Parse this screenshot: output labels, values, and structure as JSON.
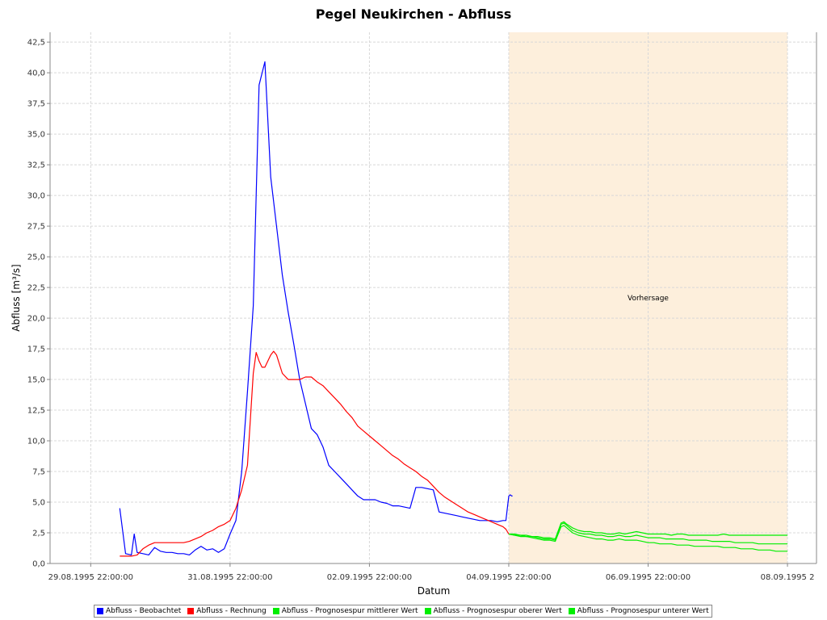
{
  "chart_data": {
    "type": "line",
    "title": "Pegel Neukirchen - Abfluss",
    "xlabel": "Datum",
    "ylabel": "Abfluss [m³/s]",
    "x_ticks": [
      "29.08.1995 22:00:00",
      "31.08.1995 22:00:00",
      "02.09.1995 22:00:00",
      "04.09.1995 22:00:00",
      "06.09.1995 22:00:00",
      "08.09.1995 2"
    ],
    "x_range_hours": [
      -14,
      250
    ],
    "y_ticks": [
      "0,0",
      "2,5",
      "5,0",
      "7,5",
      "10,0",
      "12,5",
      "15,0",
      "17,5",
      "20,0",
      "22,5",
      "25,0",
      "27,5",
      "30,0",
      "32,5",
      "35,0",
      "37,5",
      "40,0",
      "42,5"
    ],
    "ylim": [
      0,
      43.3
    ],
    "grid": true,
    "legend_position": "bottom",
    "forecast_region": {
      "label": "Vorhersage",
      "start_hour": 144,
      "end_hour": 240,
      "color": "#fdefdc"
    },
    "series": [
      {
        "name": "Abfluss - Beobachtet",
        "color": "#0000ff",
        "x": [
          10,
          12,
          14,
          15,
          16,
          18,
          20,
          22,
          24,
          26,
          28,
          30,
          32,
          34,
          36,
          38,
          40,
          42,
          44,
          46,
          48,
          50,
          52,
          54,
          56,
          58,
          60,
          62,
          64,
          66,
          68,
          70,
          72,
          74,
          76,
          78,
          80,
          82,
          84,
          86,
          88,
          90,
          92,
          94,
          96,
          98,
          100,
          102,
          104,
          106,
          108,
          110,
          112,
          114,
          116,
          118,
          120,
          122,
          124,
          126,
          128,
          130,
          132,
          134,
          136,
          138,
          140,
          142,
          143,
          144,
          144.5,
          145,
          145.3
        ],
        "y": [
          4.5,
          0.8,
          0.7,
          2.4,
          0.9,
          0.8,
          0.7,
          1.3,
          1.0,
          0.9,
          0.9,
          0.8,
          0.8,
          0.7,
          1.1,
          1.4,
          1.1,
          1.2,
          0.9,
          1.2,
          2.4,
          3.5,
          7.5,
          14.0,
          21.0,
          39.0,
          40.9,
          31.5,
          27.5,
          23.5,
          20.5,
          17.8,
          15.0,
          13.0,
          11.0,
          10.5,
          9.5,
          8.0,
          7.5,
          7.0,
          6.5,
          6.0,
          5.5,
          5.2,
          5.2,
          5.2,
          5.0,
          4.9,
          4.7,
          4.7,
          4.6,
          4.5,
          6.2,
          6.2,
          6.1,
          6.0,
          4.2,
          4.1,
          4.0,
          3.9,
          3.8,
          3.7,
          3.6,
          3.5,
          3.5,
          3.5,
          3.4,
          3.5,
          3.5,
          5.5,
          5.6,
          5.5,
          5.5
        ]
      },
      {
        "name": "Abfluss - Rechnung",
        "color": "#ff0000",
        "x": [
          10,
          14,
          16,
          18,
          20,
          22,
          24,
          26,
          28,
          30,
          32,
          34,
          36,
          38,
          40,
          42,
          44,
          46,
          48,
          50,
          52,
          54,
          56,
          57,
          58,
          59,
          60,
          62,
          63,
          64,
          66,
          68,
          70,
          72,
          74,
          76,
          78,
          80,
          82,
          84,
          86,
          88,
          90,
          92,
          94,
          96,
          98,
          100,
          102,
          104,
          106,
          108,
          110,
          112,
          114,
          116,
          118,
          120,
          122,
          124,
          126,
          128,
          130,
          132,
          134,
          136,
          138,
          140,
          142,
          143,
          144
        ],
        "y": [
          0.6,
          0.6,
          0.7,
          1.2,
          1.5,
          1.7,
          1.7,
          1.7,
          1.7,
          1.7,
          1.7,
          1.8,
          2.0,
          2.2,
          2.5,
          2.7,
          3.0,
          3.2,
          3.5,
          4.5,
          6.0,
          8.0,
          15.5,
          17.2,
          16.5,
          16.0,
          16.0,
          17.0,
          17.3,
          17.0,
          15.5,
          15.0,
          15.0,
          15.0,
          15.2,
          15.2,
          14.8,
          14.5,
          14.0,
          13.5,
          13.0,
          12.4,
          11.9,
          11.2,
          10.8,
          10.4,
          10.0,
          9.6,
          9.2,
          8.8,
          8.5,
          8.1,
          7.8,
          7.5,
          7.1,
          6.8,
          6.3,
          5.8,
          5.4,
          5.1,
          4.8,
          4.5,
          4.2,
          4.0,
          3.8,
          3.6,
          3.4,
          3.2,
          3.0,
          2.8,
          2.4
        ]
      },
      {
        "name": "Abfluss - Prognosespur mittlerer Wert",
        "color": "#00ee00",
        "x": [
          144,
          146,
          148,
          150,
          152,
          154,
          156,
          158,
          160,
          162,
          163,
          164,
          166,
          168,
          170,
          172,
          174,
          176,
          178,
          180,
          182,
          184,
          186,
          188,
          190,
          192,
          194,
          196,
          198,
          200,
          202,
          204,
          206,
          208,
          210,
          212,
          214,
          216,
          218,
          220,
          222,
          224,
          226,
          228,
          230,
          232,
          234,
          236,
          238,
          240
        ],
        "y": [
          2.4,
          2.3,
          2.3,
          2.2,
          2.2,
          2.1,
          2.0,
          2.0,
          1.9,
          3.2,
          3.3,
          3.1,
          2.7,
          2.5,
          2.4,
          2.4,
          2.3,
          2.3,
          2.2,
          2.2,
          2.3,
          2.2,
          2.2,
          2.3,
          2.2,
          2.1,
          2.1,
          2.1,
          2.0,
          2.0,
          2.0,
          2.0,
          1.9,
          1.9,
          1.9,
          1.9,
          1.8,
          1.8,
          1.8,
          1.8,
          1.7,
          1.7,
          1.7,
          1.7,
          1.6,
          1.6,
          1.6,
          1.6,
          1.6,
          1.6
        ]
      },
      {
        "name": "Abfluss - Prognosespur oberer Wert",
        "color": "#00ee00",
        "x": [
          144,
          146,
          148,
          150,
          152,
          154,
          156,
          158,
          160,
          162,
          163,
          164,
          166,
          168,
          170,
          172,
          174,
          176,
          178,
          180,
          182,
          184,
          186,
          188,
          190,
          192,
          194,
          196,
          198,
          200,
          202,
          204,
          206,
          208,
          210,
          212,
          214,
          216,
          218,
          220,
          222,
          224,
          226,
          228,
          230,
          232,
          234,
          236,
          238,
          240
        ],
        "y": [
          2.4,
          2.4,
          2.3,
          2.3,
          2.2,
          2.2,
          2.1,
          2.1,
          2.0,
          3.3,
          3.4,
          3.2,
          2.9,
          2.7,
          2.6,
          2.6,
          2.5,
          2.5,
          2.4,
          2.4,
          2.5,
          2.4,
          2.5,
          2.6,
          2.5,
          2.4,
          2.4,
          2.4,
          2.4,
          2.3,
          2.4,
          2.4,
          2.3,
          2.3,
          2.3,
          2.3,
          2.3,
          2.3,
          2.4,
          2.3,
          2.3,
          2.3,
          2.3,
          2.3,
          2.3,
          2.3,
          2.3,
          2.3,
          2.3,
          2.3
        ]
      },
      {
        "name": "Abfluss - Prognosespur unterer Wert",
        "color": "#00ee00",
        "x": [
          144,
          146,
          148,
          150,
          152,
          154,
          156,
          158,
          160,
          162,
          163,
          164,
          166,
          168,
          170,
          172,
          174,
          176,
          178,
          180,
          182,
          184,
          186,
          188,
          190,
          192,
          194,
          196,
          198,
          200,
          202,
          204,
          206,
          208,
          210,
          212,
          214,
          216,
          218,
          220,
          222,
          224,
          226,
          228,
          230,
          232,
          234,
          236,
          238,
          240
        ],
        "y": [
          2.4,
          2.3,
          2.2,
          2.2,
          2.1,
          2.0,
          1.9,
          1.9,
          1.8,
          3.0,
          3.1,
          2.9,
          2.5,
          2.3,
          2.2,
          2.1,
          2.0,
          2.0,
          1.9,
          1.9,
          2.0,
          1.9,
          1.9,
          1.9,
          1.8,
          1.7,
          1.7,
          1.6,
          1.6,
          1.6,
          1.5,
          1.5,
          1.5,
          1.4,
          1.4,
          1.4,
          1.4,
          1.4,
          1.3,
          1.3,
          1.3,
          1.2,
          1.2,
          1.2,
          1.1,
          1.1,
          1.1,
          1.0,
          1.0,
          1.0
        ]
      }
    ]
  }
}
